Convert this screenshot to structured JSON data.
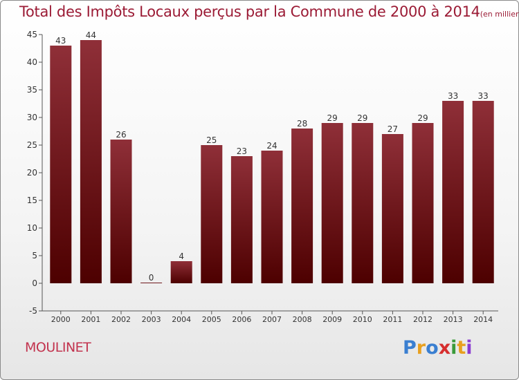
{
  "header": {
    "title": "Total des Impôts Locaux perçus par la Commune de 2000 à 2014",
    "unit": "(en milliers d'€)"
  },
  "footer": {
    "commune": "MOULINET",
    "logo_text": "Proxiti",
    "logo_colors": [
      "#3a7fd1",
      "#e8a020",
      "#3a7fd1",
      "#d62e2e",
      "#3a9a3a",
      "#e8a020",
      "#8a3ad1"
    ]
  },
  "colors": {
    "bar_top": "#8f2f38",
    "bar_bottom": "#4d0000",
    "text": "#333333",
    "axis": "#555555",
    "title": "#9b1b35"
  },
  "chart_data": {
    "type": "bar",
    "title": "Total des Impôts Locaux perçus par la Commune de 2000 à 2014",
    "xlabel": "",
    "ylabel": "",
    "categories": [
      "2000",
      "2001",
      "2002",
      "2003",
      "2004",
      "2005",
      "2006",
      "2007",
      "2008",
      "2009",
      "2010",
      "2011",
      "2012",
      "2013",
      "2014"
    ],
    "values": [
      43,
      44,
      26,
      0,
      4,
      25,
      23,
      24,
      28,
      29,
      29,
      27,
      29,
      33,
      33
    ],
    "data_labels": [
      "43",
      "44",
      "26",
      "0",
      "4",
      "25",
      "23",
      "24",
      "28",
      "29",
      "29",
      "27",
      "29",
      "33",
      "33"
    ],
    "ylim": [
      -5,
      45
    ],
    "yticks": [
      -5,
      0,
      5,
      10,
      15,
      20,
      25,
      30,
      35,
      40,
      45
    ],
    "grid": false,
    "legend": "none"
  }
}
